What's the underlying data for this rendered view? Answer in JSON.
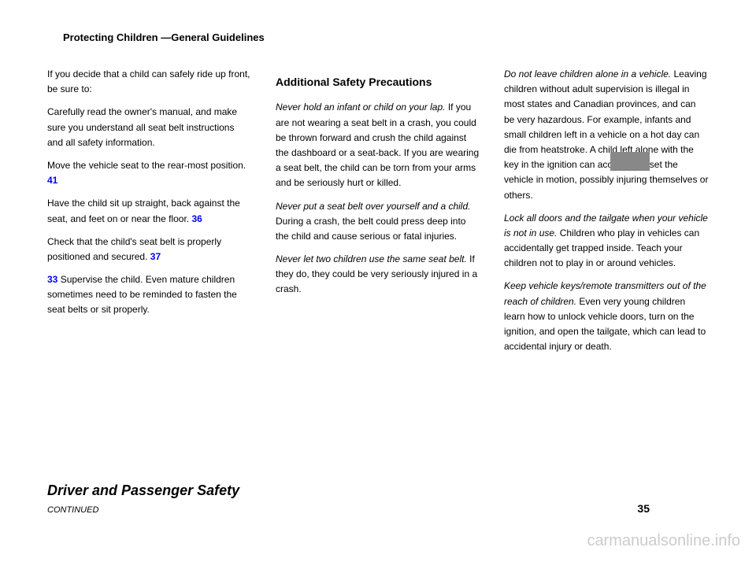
{
  "topHeading": "Protecting Children —General Guidelines",
  "pageNumberBox": "",
  "column1": {
    "para1_part1": "If you decide that a child can safely ride up front, be sure to:",
    "para2": "Carefully read the owner's manual, and make sure you understand all seat belt instructions and all safety information.",
    "para3_part1": "Move the vehicle seat to the rear-most position.",
    "para4_part1": "Have the child sit up straight, back against the seat, and feet on or near the floor.",
    "para5_part1": "Check that the child's seat belt is properly positioned and secured.",
    "para6_part1": "Supervise the child. Even mature children sometimes need to be reminded to fasten the seat belts or sit properly."
  },
  "column2": {
    "header1": "Additional Safety Precautions",
    "para1_bold": "Never hold an infant or child on your lap.",
    "para1_text": " If you are not wearing a seat belt in a crash, you could be thrown forward and crush the child against the dashboard or a seat-back. If you are wearing a seat belt, the child can be torn from your arms and be seriously hurt or killed.",
    "para2_bold": "Never put a seat belt over yourself and a child.",
    "para2_text": " During a crash, the belt could press deep into the child and cause serious or fatal injuries.",
    "para3_bold": "Never let two children use the same seat belt.",
    "para3_text": " If they do, they could be very seriously injured in a crash."
  },
  "column3": {
    "para1_bold": "Do not leave children alone in a vehicle.",
    "para1_text": " Leaving children without adult supervision is illegal in most states and Canadian provinces, and can be very hazardous. For example, infants and small children left in a vehicle on a hot day can die from heatstroke. A child left alone with the key in the ignition can accidentally set the vehicle in motion, possibly injuring themselves or others.",
    "para2_bold": "Lock all doors and the tailgate when your vehicle is not in use.",
    "para2_text": " Children who play in vehicles can accidentally get trapped inside. Teach your children not to play in or around vehicles.",
    "para3_bold": "Keep vehicle keys/remote transmitters out of the reach of children.",
    "para3_text": " Even very young children learn how to unlock vehicle doors, turn on the ignition, and open the tailgate, which can lead to accidental injury or death."
  },
  "pageTitle": "Driver and Passenger Safety",
  "continued": "CONTINUED",
  "pageNumber": "35",
  "pageRefs": {
    "ref1": "41",
    "ref2": "36",
    "ref3": "37",
    "ref4": "33"
  },
  "watermark": "carmanualsonline.info",
  "colors": {
    "text": "#000000",
    "pageRef": "#0000ff",
    "pageBox": "#888888",
    "watermark": "#cccccc",
    "background": "#ffffff"
  },
  "typography": {
    "bodyFontSize": 12,
    "headerFontSize": 14,
    "titleFontSize": 18,
    "watermarkFontSize": 20,
    "lineHeight": 1.6
  }
}
